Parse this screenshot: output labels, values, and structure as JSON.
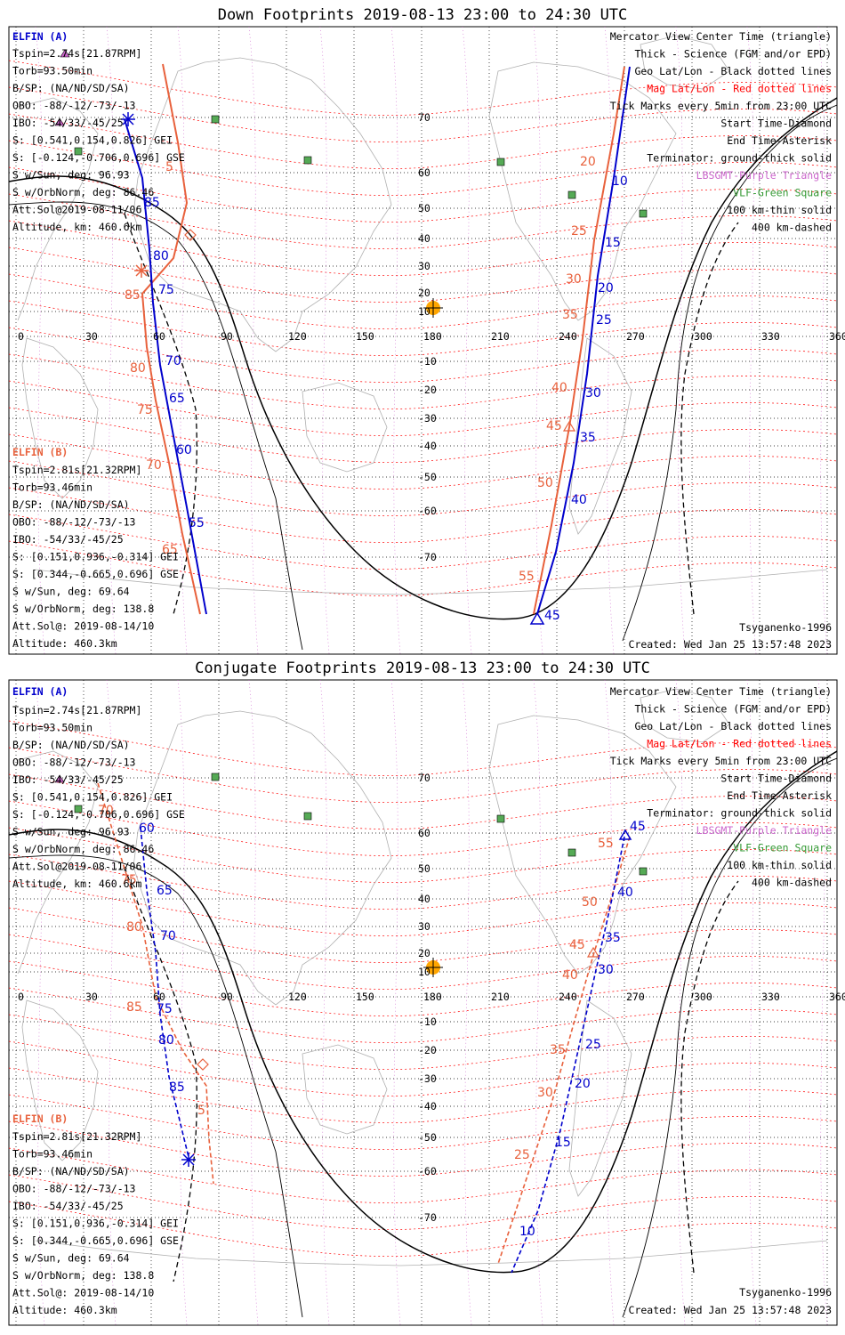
{
  "colors": {
    "elfin_a": "#0000cc",
    "elfin_b": "#e8613c",
    "mag_grid": "#ff0000",
    "geo_grid": "#000000",
    "lbsgmt": "#cc66cc",
    "vlf": "#339933",
    "sun": "#ffa500",
    "terminator": "#000000"
  },
  "panels": [
    {
      "id": "down",
      "title": "Down Footprints 2019-08-13 23:00 to 24:30 UTC",
      "elfin_a": {
        "name": "ELFIN (A)",
        "lines": [
          "Tspin=2.74s[21.87RPM]",
          "Torb=93.50min",
          "B/SP: (NA/ND/SD/SA)",
          "OBO: -88/-12/-73/-13",
          "IBO: -54/33/-45/25",
          "S: [0.541,0.154,0.826] GEI",
          "S: [-0.124,-0.706,0.696] GSE",
          "S w/Sun, deg: 96.93",
          "S w/OrbNorm, deg: 86.46",
          "Att.Sol@2019-08-11/06",
          "Altitude, km: 460.6km"
        ]
      },
      "elfin_b": {
        "name": "ELFIN (B)",
        "lines": [
          "Tspin=2.81s[21.32RPM]",
          "Torb=93.46min",
          "B/SP: (NA/ND/SD/SA)",
          "OBO: -88/-12/-73/-13",
          "IBO: -54/33/-45/25",
          "S: [0.151,0.936,-0.314] GEI",
          "S: [0.344,-0.665,0.696] GSE",
          "S w/Sun, deg: 69.64",
          "S w/OrbNorm, deg: 138.8",
          "Att.Sol@: 2019-08-14/10",
          "Altitude: 460.3km"
        ]
      },
      "legend": [
        "Mercator View Center Time (triangle)",
        "Thick - Science (FGM and/or EPD)",
        "Geo Lat/Lon - Black dotted lines",
        "Mag Lat/Lon - Red dotted lines",
        "Tick Marks every 5min from 23:00 UTC",
        "Start Time-Diamond",
        "End Time-Asterisk",
        "Terminator: ground-thick solid",
        "LBSGMT-Purple Triangle",
        "VLF-Green Square",
        "100 km-thin solid",
        "400 km-dashed"
      ],
      "model": "Tsyganenko-1996",
      "created": "Created: Wed Jan 25 13:57:48 2023",
      "track_a_labels": [
        "85",
        "80",
        "75",
        "70",
        "65",
        "60",
        "55",
        "10",
        "15",
        "20",
        "25",
        "30",
        "35",
        "40",
        "45"
      ],
      "track_b_labels": [
        "5",
        "85",
        "80",
        "75",
        "70",
        "65",
        "20",
        "25",
        "30",
        "35",
        "40",
        "45",
        "50",
        "55"
      ]
    },
    {
      "id": "conjugate",
      "title": "Conjugate Footprints 2019-08-13 23:00 to 24:30 UTC",
      "elfin_a": {
        "name": "ELFIN (A)",
        "lines": [
          "Tspin=2.74s[21.87RPM]",
          "Torb=93.50min",
          "B/SP: (NA/ND/SD/SA)",
          "OBO: -88/-12/-73/-13",
          "IBO: -54/33/-45/25",
          "S: [0.541,0.154,0.826] GEI",
          "S: [-0.124,-0.706,0.696] GSE",
          "S w/Sun, deg: 96.93",
          "S w/OrbNorm, deg: 86.46",
          "Att.Sol@2019-08-11/06",
          "Altitude, km: 460.6km"
        ]
      },
      "elfin_b": {
        "name": "ELFIN (B)",
        "lines": [
          "Tspin=2.81s[21.32RPM]",
          "Torb=93.46min",
          "B/SP: (NA/ND/SD/SA)",
          "OBO: -88/-12/-73/-13",
          "IBO: -54/33/-45/25",
          "S: [0.151,0.936,-0.314] GEI",
          "S: [0.344,-0.665,0.696] GSE",
          "S w/Sun, deg: 69.64",
          "S w/OrbNorm, deg: 138.8",
          "Att.Sol@: 2019-08-14/10",
          "Altitude: 460.3km"
        ]
      },
      "legend": [
        "Mercator View Center Time (triangle)",
        "Thick - Science (FGM and/or EPD)",
        "Geo Lat/Lon - Black dotted lines",
        "Mag Lat/Lon - Red dotted lines",
        "Tick Marks every 5min from 23:00 UTC",
        "Start Time-Diamond",
        "End Time-Asterisk",
        "Terminator: ground-thick solid",
        "LBSGMT-Purple Triangle",
        "VLF-Green Square",
        "100 km-thin solid",
        "400 km-dashed"
      ],
      "model": "Tsyganenko-1996",
      "created": "Created: Wed Jan 25 13:57:48 2023",
      "track_a_labels": [
        "60",
        "65",
        "70",
        "75",
        "80",
        "85",
        "45",
        "40",
        "35",
        "30",
        "25",
        "20",
        "15",
        "10"
      ],
      "track_b_labels": [
        "70",
        "75",
        "80",
        "85",
        "5",
        "55",
        "50",
        "45",
        "40",
        "35",
        "30",
        "25"
      ]
    }
  ],
  "axes": {
    "lon_ticks": [
      "0",
      "30",
      "60",
      "90",
      "120",
      "150",
      "180",
      "210",
      "240",
      "270",
      "300",
      "330",
      "360"
    ],
    "lat_ticks": [
      "70",
      "60",
      "50",
      "40",
      "30",
      "20",
      "10",
      "-10",
      "-20",
      "-30",
      "-40",
      "-50",
      "-60",
      "-70"
    ]
  }
}
